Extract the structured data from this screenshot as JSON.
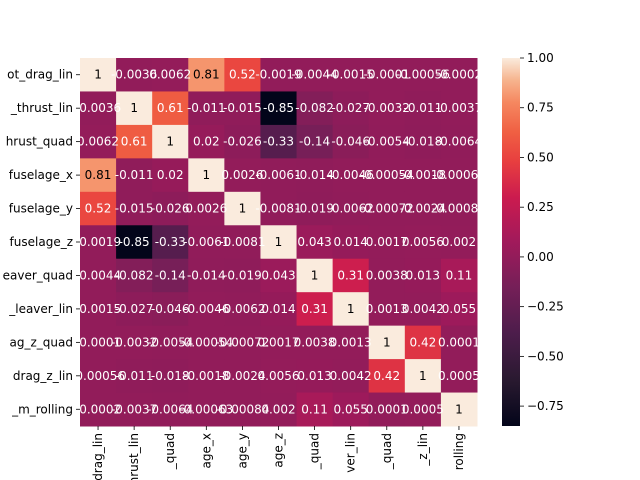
{
  "chart_data": {
    "type": "heatmap",
    "row_labels": [
      "ot_drag_lin",
      "_thrust_lin",
      "hrust_quad",
      "fuselage_x",
      "fuselage_y",
      "fuselage_z",
      "eaver_quad",
      "_leaver_lin",
      "ag_z_quad",
      "drag_z_lin",
      "_m_rolling"
    ],
    "col_labels": [
      "drag_lin",
      "hrust_lin",
      "_quad",
      "age_x",
      "age_y",
      "age_z",
      "_quad",
      "ver_lin",
      "_quad",
      "_z_lin",
      "rolling"
    ],
    "values": [
      [
        1,
        -0.0036,
        0.0062,
        0.81,
        0.52,
        -0.0019,
        -0.0044,
        -0.0015,
        -0.0001,
        -0.00056,
        -0.0002
      ],
      [
        -0.0036,
        1,
        0.61,
        -0.011,
        -0.015,
        -0.85,
        -0.082,
        -0.027,
        -0.0032,
        -0.011,
        -0.0037
      ],
      [
        0.0062,
        0.61,
        1,
        0.02,
        -0.026,
        -0.33,
        -0.14,
        -0.046,
        -0.0054,
        -0.018,
        -0.0064
      ],
      [
        0.81,
        -0.011,
        0.02,
        1,
        0.0026,
        -0.0061,
        -0.014,
        -0.0046,
        -0.00054,
        -0.0018,
        -0.00063
      ],
      [
        0.52,
        -0.015,
        -0.026,
        0.0026,
        1,
        -0.0081,
        -0.019,
        -0.0062,
        -0.00072,
        -0.0024,
        -0.00084
      ],
      [
        -0.0019,
        -0.85,
        -0.33,
        -0.0061,
        -0.0081,
        1,
        0.043,
        0.014,
        0.0017,
        0.0056,
        0.002
      ],
      [
        -0.0044,
        -0.082,
        -0.14,
        -0.014,
        -0.019,
        0.043,
        1,
        0.31,
        0.0038,
        0.013,
        0.11
      ],
      [
        -0.0015,
        -0.027,
        -0.046,
        -0.0046,
        -0.0062,
        0.014,
        0.31,
        1,
        0.0013,
        0.0042,
        0.055
      ],
      [
        -0.0001,
        -0.0032,
        -0.0054,
        -0.00054,
        -0.00072,
        0.0017,
        0.0038,
        0.0013,
        1,
        0.42,
        0.0001
      ],
      [
        -0.00056,
        -0.011,
        -0.018,
        -0.0018,
        -0.0024,
        0.0056,
        0.013,
        0.0042,
        0.42,
        1,
        0.0005
      ],
      [
        -0.0002,
        -0.0037,
        -0.0064,
        -0.00063,
        -0.00084,
        0.002,
        0.11,
        0.055,
        0.0001,
        0.0005,
        1
      ]
    ],
    "cell_labels": [
      [
        "1",
        "-0.0036",
        "0.0062",
        "0.81",
        "0.52",
        "-0.0019",
        "-0.0044",
        "-0.0015",
        "-0.0001",
        "-0.00056",
        "-0.0002"
      ],
      [
        "-0.0036",
        "1",
        "0.61",
        "-0.011",
        "-0.015",
        "-0.85",
        "-0.082",
        "-0.027",
        "-0.0032",
        "-0.011",
        "-0.0037"
      ],
      [
        "0.0062",
        "0.61",
        "1",
        "0.02",
        "-0.026",
        "-0.33",
        "-0.14",
        "-0.046",
        "-0.0054",
        "-0.018",
        "-0.0064"
      ],
      [
        "0.81",
        "-0.011",
        "0.02",
        "1",
        "0.0026",
        "-0.0061",
        "-0.014",
        "-0.0046",
        "-0.00054",
        "-0.0018",
        "-0.00063"
      ],
      [
        "0.52",
        "-0.015",
        "-0.026",
        "0.0026",
        "1",
        "-0.0081",
        "-0.019",
        "-0.0062",
        "-0.00072",
        "-0.0024",
        "-0.00084"
      ],
      [
        "-0.0019",
        "-0.85",
        "-0.33",
        "-0.0061",
        "-0.0081",
        "1",
        "0.043",
        "0.014",
        "0.0017",
        "0.0056",
        "0.002"
      ],
      [
        "-0.0044",
        "-0.082",
        "-0.14",
        "-0.014",
        "-0.019",
        "0.043",
        "1",
        "0.31",
        "0.0038",
        "0.013",
        "0.11"
      ],
      [
        "-0.0015",
        "-0.027",
        "-0.046",
        "-0.0046",
        "-0.0062",
        "0.014",
        "0.31",
        "1",
        "0.0013",
        "0.0042",
        "0.055"
      ],
      [
        "-0.0001",
        "-0.0032",
        "-0.0054",
        "-0.00054",
        "-0.00072",
        "0.0017",
        "0.0038",
        "0.0013",
        "1",
        "0.42",
        "0.0001"
      ],
      [
        "-0.00056",
        "-0.011",
        "-0.018",
        "-0.0018",
        "-0.0024",
        "0.0056",
        "0.013",
        "0.0042",
        "0.42",
        "1",
        "0.0005"
      ],
      [
        "-0.0002",
        "-0.0037",
        "-0.0064",
        "-0.00063",
        "-0.00084",
        "0.002",
        "0.11",
        "0.055",
        "0.0001",
        "0.0005",
        "1"
      ]
    ],
    "colorbar": {
      "range": [
        -0.85,
        1
      ],
      "ticks": [
        1.0,
        0.75,
        0.5,
        0.25,
        0.0,
        -0.25,
        -0.5,
        -0.75
      ],
      "tick_labels": [
        "1.00",
        "0.75",
        "0.50",
        "0.25",
        "0.00",
        "−0.25",
        "−0.50",
        "−0.75"
      ],
      "colormap": "rocket"
    },
    "title": "",
    "xlabel": "",
    "ylabel": ""
  }
}
